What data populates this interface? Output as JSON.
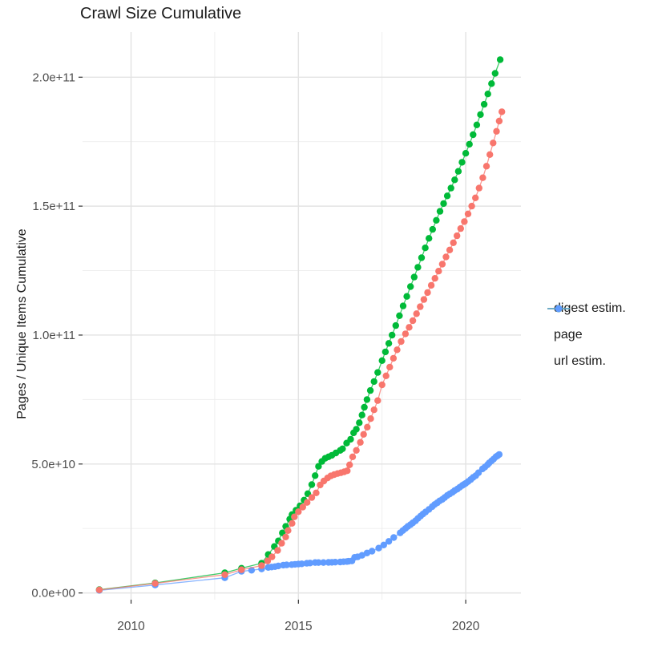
{
  "chart_data": {
    "type": "scatter",
    "title": "Crawl Size Cumulative",
    "xlabel": "",
    "ylabel": "Pages / Unique Items Cumulative",
    "legend_position": "right",
    "grid": true,
    "x_ticks": {
      "labels": [
        "2010",
        "2015",
        "2020"
      ],
      "values": [
        2010,
        2015,
        2020
      ]
    },
    "x_minor": [
      2012.5,
      2017.5
    ],
    "y_ticks": {
      "labels": [
        "0.0e+00",
        "5.0e+10",
        "1.0e+11",
        "1.5e+11",
        "2.0e+11"
      ],
      "values_in_billions": [
        0,
        50,
        100,
        150,
        200
      ]
    },
    "y_minor_in_billions": [
      25,
      75,
      125,
      175
    ],
    "xlim": [
      2008.55,
      2021.65
    ],
    "ylim_in_billions": [
      -2.6,
      217.5
    ],
    "value_unit": 1000000000,
    "series": [
      {
        "name": "digest estim.",
        "color": "#F8766D",
        "points_year_billions": [
          [
            2009.05,
            1.2
          ],
          [
            2010.72,
            3.7
          ],
          [
            2012.8,
            7.1
          ],
          [
            2013.3,
            9.0
          ],
          [
            2013.9,
            10.6
          ],
          [
            2014.08,
            12.4
          ],
          [
            2014.21,
            14.0
          ],
          [
            2014.38,
            16.5
          ],
          [
            2014.5,
            19.3
          ],
          [
            2014.62,
            21.7
          ],
          [
            2014.69,
            24.2
          ],
          [
            2014.81,
            27.0
          ],
          [
            2014.88,
            29.5
          ],
          [
            2015.0,
            31.5
          ],
          [
            2015.13,
            33.3
          ],
          [
            2015.26,
            35.1
          ],
          [
            2015.4,
            37.0
          ],
          [
            2015.53,
            38.8
          ],
          [
            2015.65,
            41.9
          ],
          [
            2015.76,
            43.4
          ],
          [
            2015.87,
            44.6
          ],
          [
            2015.97,
            45.4
          ],
          [
            2016.07,
            45.9
          ],
          [
            2016.17,
            46.3
          ],
          [
            2016.27,
            46.6
          ],
          [
            2016.37,
            47.0
          ],
          [
            2016.46,
            47.4
          ],
          [
            2016.53,
            49.7
          ],
          [
            2016.62,
            52.8
          ],
          [
            2016.73,
            55.3
          ],
          [
            2016.85,
            58.4
          ],
          [
            2016.95,
            61.5
          ],
          [
            2017.06,
            64.3
          ],
          [
            2017.16,
            67.6
          ],
          [
            2017.26,
            71.0
          ],
          [
            2017.37,
            74.6
          ],
          [
            2017.5,
            80.7
          ],
          [
            2017.62,
            84.2
          ],
          [
            2017.73,
            87.6
          ],
          [
            2017.84,
            91.0
          ],
          [
            2017.95,
            94.3
          ],
          [
            2018.07,
            97.5
          ],
          [
            2018.2,
            100.5
          ],
          [
            2018.31,
            103.0
          ],
          [
            2018.42,
            105.6
          ],
          [
            2018.53,
            108.3
          ],
          [
            2018.64,
            111.0
          ],
          [
            2018.75,
            113.8
          ],
          [
            2018.86,
            116.5
          ],
          [
            2018.97,
            119.3
          ],
          [
            2019.08,
            122.0
          ],
          [
            2019.19,
            124.8
          ],
          [
            2019.3,
            127.5
          ],
          [
            2019.41,
            130.3
          ],
          [
            2019.52,
            133.0
          ],
          [
            2019.63,
            135.8
          ],
          [
            2019.74,
            138.5
          ],
          [
            2019.85,
            141.3
          ],
          [
            2019.96,
            144.0
          ],
          [
            2020.07,
            147.0
          ],
          [
            2020.18,
            150.0
          ],
          [
            2020.29,
            153.2
          ],
          [
            2020.4,
            157.0
          ],
          [
            2020.51,
            161.0
          ],
          [
            2020.62,
            165.5
          ],
          [
            2020.72,
            170.0
          ],
          [
            2020.82,
            174.5
          ],
          [
            2020.92,
            179.0
          ],
          [
            2021.0,
            183.0
          ],
          [
            2021.08,
            186.6
          ]
        ]
      },
      {
        "name": "page",
        "color": "#00BA38",
        "points_year_billions": [
          [
            2009.05,
            1.3
          ],
          [
            2010.72,
            3.9
          ],
          [
            2012.8,
            7.8
          ],
          [
            2013.3,
            9.6
          ],
          [
            2013.9,
            11.5
          ],
          [
            2014.1,
            14.9
          ],
          [
            2014.28,
            18.0
          ],
          [
            2014.4,
            20.2
          ],
          [
            2014.52,
            23.3
          ],
          [
            2014.62,
            25.8
          ],
          [
            2014.74,
            28.6
          ],
          [
            2014.81,
            30.4
          ],
          [
            2014.93,
            32.1
          ],
          [
            2015.05,
            33.8
          ],
          [
            2015.17,
            36.0
          ],
          [
            2015.28,
            38.5
          ],
          [
            2015.4,
            42.0
          ],
          [
            2015.5,
            45.5
          ],
          [
            2015.6,
            49.1
          ],
          [
            2015.7,
            51.0
          ],
          [
            2015.8,
            52.2
          ],
          [
            2015.9,
            52.8
          ],
          [
            2016.0,
            53.4
          ],
          [
            2016.12,
            54.3
          ],
          [
            2016.25,
            55.3
          ],
          [
            2016.32,
            55.9
          ],
          [
            2016.44,
            58.1
          ],
          [
            2016.56,
            59.6
          ],
          [
            2016.65,
            62.1
          ],
          [
            2016.73,
            63.5
          ],
          [
            2016.82,
            66.0
          ],
          [
            2016.9,
            69.0
          ],
          [
            2016.97,
            72.0
          ],
          [
            2017.05,
            75.0
          ],
          [
            2017.15,
            78.5
          ],
          [
            2017.26,
            82.0
          ],
          [
            2017.37,
            85.5
          ],
          [
            2017.5,
            90.1
          ],
          [
            2017.6,
            93.5
          ],
          [
            2017.7,
            96.8
          ],
          [
            2017.8,
            100.0
          ],
          [
            2017.91,
            103.7
          ],
          [
            2018.02,
            107.5
          ],
          [
            2018.13,
            111.3
          ],
          [
            2018.24,
            115.0
          ],
          [
            2018.35,
            118.8
          ],
          [
            2018.46,
            122.5
          ],
          [
            2018.57,
            126.3
          ],
          [
            2018.68,
            130.0
          ],
          [
            2018.79,
            133.8
          ],
          [
            2018.9,
            137.5
          ],
          [
            2019.01,
            141.0
          ],
          [
            2019.12,
            144.5
          ],
          [
            2019.23,
            148.0
          ],
          [
            2019.34,
            151.0
          ],
          [
            2019.45,
            154.0
          ],
          [
            2019.56,
            157.0
          ],
          [
            2019.67,
            160.2
          ],
          [
            2019.78,
            163.5
          ],
          [
            2019.89,
            167.0
          ],
          [
            2020.0,
            170.5
          ],
          [
            2020.11,
            174.0
          ],
          [
            2020.22,
            177.7
          ],
          [
            2020.33,
            181.5
          ],
          [
            2020.44,
            185.5
          ],
          [
            2020.55,
            189.5
          ],
          [
            2020.66,
            193.5
          ],
          [
            2020.77,
            197.5
          ],
          [
            2020.88,
            201.5
          ],
          [
            2021.03,
            206.8
          ]
        ]
      },
      {
        "name": "url estim.",
        "color": "#619CFF",
        "points_year_billions": [
          [
            2009.05,
            1.0
          ],
          [
            2010.72,
            3.1
          ],
          [
            2012.8,
            5.9
          ],
          [
            2013.3,
            8.4
          ],
          [
            2013.6,
            8.8
          ],
          [
            2013.9,
            9.3
          ],
          [
            2014.1,
            9.9
          ],
          [
            2014.2,
            10.05
          ],
          [
            2014.3,
            10.2
          ],
          [
            2014.4,
            10.5
          ],
          [
            2014.55,
            10.8
          ],
          [
            2014.65,
            10.9
          ],
          [
            2014.8,
            11.0
          ],
          [
            2014.9,
            11.1
          ],
          [
            2015.0,
            11.2
          ],
          [
            2015.1,
            11.3
          ],
          [
            2015.25,
            11.5
          ],
          [
            2015.35,
            11.6
          ],
          [
            2015.5,
            11.8
          ],
          [
            2015.6,
            11.8
          ],
          [
            2015.75,
            11.8
          ],
          [
            2015.9,
            11.85
          ],
          [
            2016.0,
            11.9
          ],
          [
            2016.1,
            11.95
          ],
          [
            2016.25,
            12.0
          ],
          [
            2016.35,
            12.1
          ],
          [
            2016.45,
            12.2
          ],
          [
            2016.5,
            12.3
          ],
          [
            2016.6,
            12.4
          ],
          [
            2016.68,
            13.8
          ],
          [
            2016.77,
            14.0
          ],
          [
            2016.9,
            14.6
          ],
          [
            2017.05,
            15.5
          ],
          [
            2017.2,
            16.2
          ],
          [
            2017.4,
            17.4
          ],
          [
            2017.55,
            18.6
          ],
          [
            2017.7,
            20.0
          ],
          [
            2017.85,
            21.5
          ],
          [
            2018.04,
            23.3
          ],
          [
            2018.12,
            24.2
          ],
          [
            2018.2,
            25.0
          ],
          [
            2018.27,
            25.8
          ],
          [
            2018.35,
            26.5
          ],
          [
            2018.42,
            27.2
          ],
          [
            2018.5,
            28.0
          ],
          [
            2018.57,
            28.9
          ],
          [
            2018.65,
            29.8
          ],
          [
            2018.72,
            30.6
          ],
          [
            2018.8,
            31.4
          ],
          [
            2018.9,
            32.4
          ],
          [
            2019.0,
            33.5
          ],
          [
            2019.07,
            34.3
          ],
          [
            2019.15,
            35.0
          ],
          [
            2019.22,
            35.7
          ],
          [
            2019.3,
            36.3
          ],
          [
            2019.37,
            37.0
          ],
          [
            2019.45,
            37.8
          ],
          [
            2019.52,
            38.4
          ],
          [
            2019.6,
            39.0
          ],
          [
            2019.67,
            39.7
          ],
          [
            2019.75,
            40.3
          ],
          [
            2019.82,
            41.0
          ],
          [
            2019.9,
            41.7
          ],
          [
            2019.95,
            42.1
          ],
          [
            2020.0,
            42.5
          ],
          [
            2020.07,
            43.2
          ],
          [
            2020.15,
            44.0
          ],
          [
            2020.22,
            44.8
          ],
          [
            2020.3,
            45.5
          ],
          [
            2020.38,
            46.6
          ],
          [
            2020.5,
            48.1
          ],
          [
            2020.57,
            48.8
          ],
          [
            2020.65,
            49.7
          ],
          [
            2020.7,
            50.4
          ],
          [
            2020.77,
            51.2
          ],
          [
            2020.83,
            51.9
          ],
          [
            2020.9,
            52.8
          ],
          [
            2020.95,
            53.2
          ],
          [
            2021.0,
            53.7
          ]
        ]
      }
    ],
    "style": {
      "grid_major_color": "#E3E3E3",
      "grid_minor_color": "#EDEDED",
      "tick_color": "#333333",
      "tick_label_color": "#4D4D4D",
      "text_color": "#1a1a1a"
    }
  }
}
